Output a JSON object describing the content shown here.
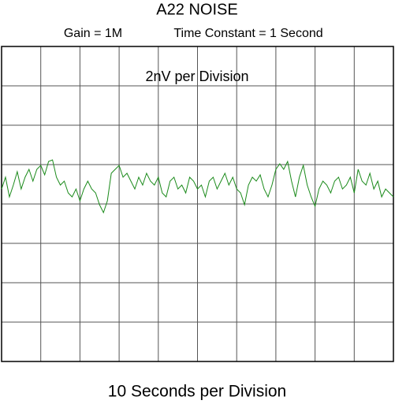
{
  "chart_data": {
    "type": "line",
    "title": "A22 NOISE",
    "annotations": [
      "Gain = 1M",
      "Time Constant = 1 Second",
      "2nV per Division"
    ],
    "x_label": "10 Seconds per Division",
    "x": [
      0,
      1,
      2,
      3,
      4,
      5,
      6,
      7,
      8,
      9,
      10,
      11,
      12,
      13,
      14,
      15,
      16,
      17,
      18,
      19,
      20,
      21,
      22,
      23,
      24,
      25,
      26,
      27,
      28,
      29,
      30,
      31,
      32,
      33,
      34,
      35,
      36,
      37,
      38,
      39,
      40,
      41,
      42,
      43,
      44,
      45,
      46,
      47,
      48,
      49,
      50,
      51,
      52,
      53,
      54,
      55,
      56,
      57,
      58,
      59,
      60,
      61,
      62,
      63,
      64,
      65,
      66,
      67,
      68,
      69,
      70,
      71,
      72,
      73,
      74,
      75,
      76,
      77,
      78,
      79,
      80,
      81,
      82,
      83,
      84,
      85,
      86,
      87,
      88,
      89,
      90,
      91,
      92,
      93,
      94,
      95,
      96,
      97,
      98,
      99,
      100
    ],
    "series": [
      {
        "color": "#1a8a1a",
        "values": [
          0.76,
          1.36,
          0.36,
          0.96,
          1.64,
          0.76,
          1.36,
          1.76,
          1.16,
          1.76,
          1.96,
          1.48,
          2.16,
          2.24,
          1.36,
          0.96,
          1.16,
          0.56,
          0.36,
          0.76,
          0.16,
          0.76,
          1.16,
          0.76,
          0.56,
          -0.04,
          -0.44,
          0.16,
          1.56,
          1.76,
          1.96,
          1.36,
          1.56,
          1.16,
          0.76,
          1.36,
          0.96,
          1.56,
          1.16,
          0.96,
          1.36,
          0.56,
          0.36,
          1.16,
          1.36,
          0.76,
          0.96,
          0.56,
          1.36,
          1.16,
          0.76,
          0.96,
          0.36,
          1.16,
          1.36,
          0.76,
          1.16,
          1.56,
          0.96,
          1.36,
          0.76,
          0.56,
          -0.04,
          0.96,
          1.36,
          1.16,
          1.48,
          0.76,
          0.36,
          0.96,
          1.76,
          2.04,
          1.76,
          2.16,
          1.16,
          0.36,
          1.36,
          1.96,
          0.96,
          0.36,
          -0.12,
          0.76,
          1.16,
          0.96,
          0.56,
          1.16,
          1.36,
          0.76,
          0.96,
          1.36,
          0.56,
          1.76,
          1.16,
          0.96,
          1.56,
          0.76,
          1.16,
          0.36,
          0.76,
          0.56,
          0.36
        ]
      }
    ],
    "xlim": [
      0,
      100
    ],
    "xticks": [
      0,
      10,
      20,
      30,
      40,
      50,
      60,
      70,
      80,
      90,
      100
    ],
    "ylim": [
      -8,
      8
    ],
    "yticks": [
      -8,
      -6,
      -4,
      -2,
      0,
      2,
      4,
      6,
      8
    ],
    "grid": true
  }
}
